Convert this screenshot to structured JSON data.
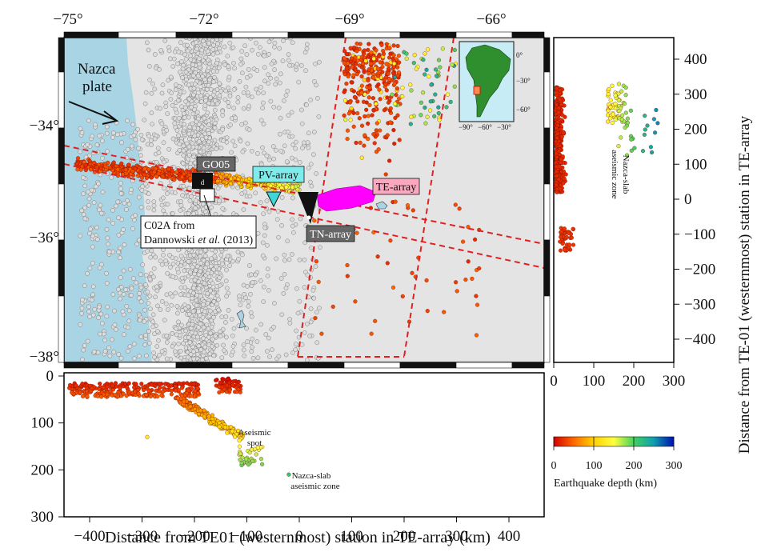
{
  "map": {
    "lon_ticks": [
      "−75°",
      "−72°",
      "−69°",
      "−66°"
    ],
    "lat_ticks": [
      "−34°",
      "−36°",
      "−38°"
    ],
    "nazca_label_line1": "Nazca",
    "nazca_label_line2": "plate",
    "stations": {
      "go05": "GO05",
      "c02a_line1": "C02A from",
      "c02a_line2_a": "Dannowski ",
      "c02a_line2_b": "et al.",
      "c02a_line2_c": " (2013)",
      "pv": "PV-array",
      "te": "TE-array",
      "tn": "TN-array"
    },
    "inset": {
      "lat_ticks": [
        "0°",
        "−30°",
        "−60°"
      ],
      "lon_ticks": [
        "−90°",
        "−60°",
        "−30°"
      ]
    },
    "colors": {
      "ocean": "#a9d4e4",
      "land": "#e4e4e4",
      "event_shallow": "#cc1616",
      "profile_box": "#e02020",
      "pv_marker": "#3fd6d6",
      "te_marker": "#ff00ff",
      "tn_marker": "#111111"
    }
  },
  "right_profile": {
    "y_ticks": [
      "400",
      "300",
      "200",
      "100",
      "0",
      "−100",
      "−200",
      "−300",
      "−400"
    ],
    "x_ticks": [
      "0",
      "100",
      "200",
      "300"
    ],
    "y_title": "Distance from TE-01 (westernmost) station in TE-array",
    "zone_label_line1": "Nazca-slab",
    "zone_label_line2": "aseismic zone"
  },
  "bottom_profile": {
    "x_ticks": [
      "−400",
      "−300",
      "−200",
      "−100",
      "0",
      "100",
      "200",
      "300",
      "400"
    ],
    "y_ticks": [
      "0",
      "100",
      "200",
      "300"
    ],
    "x_title": "Distance from TE01 (westernmost) station in TE-array (km)",
    "spot_label_line1": "Aseismic",
    "spot_label_line2": "spot",
    "zone_label_line1": "Nazca-slab",
    "zone_label_line2": "aseismic zone"
  },
  "colorbar": {
    "ticks": [
      "0",
      "100",
      "200",
      "300"
    ],
    "title": "Earthquake depth (km)",
    "range": [
      0,
      300
    ]
  }
}
